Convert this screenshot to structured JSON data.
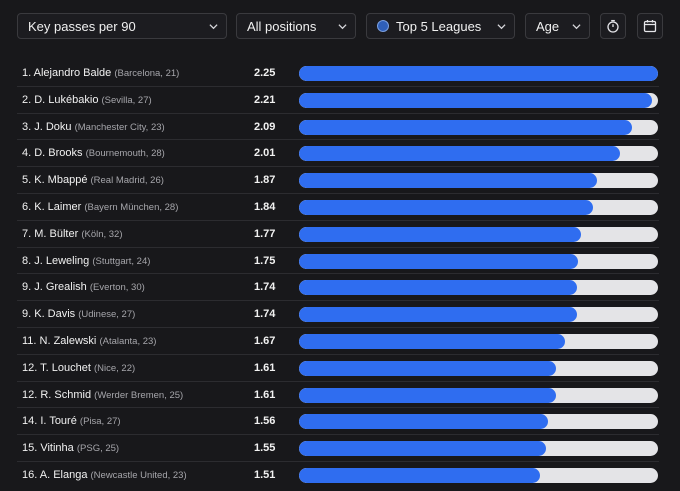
{
  "filters": {
    "metric": "Key passes per 90",
    "position": "All positions",
    "league": "Top 5 Leagues",
    "age": "Age"
  },
  "icons": {
    "chevron": "chevron-down-icon",
    "league_badge": "globe-icon",
    "timer": "stopwatch-icon",
    "calendar": "calendar-icon"
  },
  "colors": {
    "bar_fill": "#2f6df0",
    "bar_track": "#e4e4e7",
    "background": "#18181b"
  },
  "scale_max": 2.25,
  "players": [
    {
      "name": "1. Alejandro Balde",
      "meta": "(Barcelona, 21)",
      "value": "2.25"
    },
    {
      "name": "2. D. Lukébakio",
      "meta": "(Sevilla, 27)",
      "value": "2.21"
    },
    {
      "name": "3. J. Doku",
      "meta": "(Manchester City, 23)",
      "value": "2.09"
    },
    {
      "name": "4. D. Brooks",
      "meta": "(Bournemouth, 28)",
      "value": "2.01"
    },
    {
      "name": "5. K. Mbappé",
      "meta": "(Real Madrid, 26)",
      "value": "1.87"
    },
    {
      "name": "6. K. Laimer",
      "meta": "(Bayern München, 28)",
      "value": "1.84"
    },
    {
      "name": "7. M. Bülter",
      "meta": "(Köln, 32)",
      "value": "1.77"
    },
    {
      "name": "8. J. Leweling",
      "meta": "(Stuttgart, 24)",
      "value": "1.75"
    },
    {
      "name": "9. J. Grealish",
      "meta": "(Everton, 30)",
      "value": "1.74"
    },
    {
      "name": "9. K. Davis",
      "meta": "(Udinese, 27)",
      "value": "1.74"
    },
    {
      "name": "11. N. Zalewski",
      "meta": "(Atalanta, 23)",
      "value": "1.67"
    },
    {
      "name": "12. T. Louchet",
      "meta": "(Nice, 22)",
      "value": "1.61"
    },
    {
      "name": "12. R. Schmid",
      "meta": "(Werder Bremen, 25)",
      "value": "1.61"
    },
    {
      "name": "14. I. Touré",
      "meta": "(Pisa, 27)",
      "value": "1.56"
    },
    {
      "name": "15. Vitinha",
      "meta": "(PSG, 25)",
      "value": "1.55"
    },
    {
      "name": "16. A. Elanga",
      "meta": "(Newcastle United, 23)",
      "value": "1.51"
    }
  ]
}
